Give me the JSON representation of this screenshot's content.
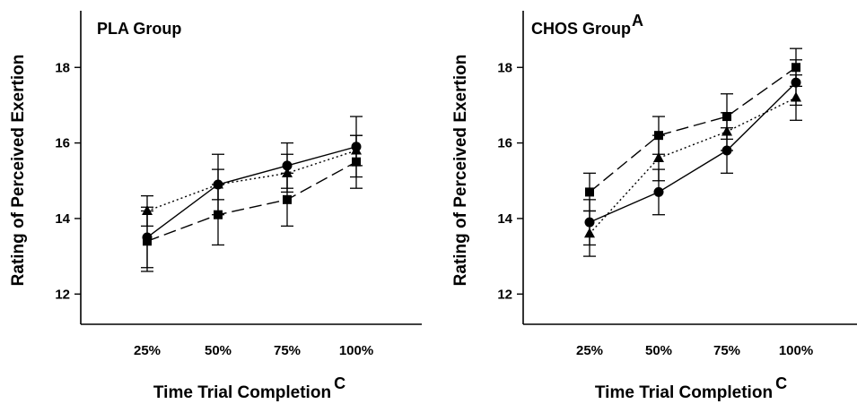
{
  "chart_data": [
    {
      "type": "line",
      "title": "PLA Group",
      "title_superscript": "",
      "xlabel": "Time Trial Completion",
      "xlabel_superscript": "C",
      "ylabel": "Rating of Perceived Exertion",
      "categories": [
        "25%",
        "50%",
        "75%",
        "100%"
      ],
      "ylim": [
        11.2,
        19.5
      ],
      "yticks": [
        12,
        14,
        16,
        18
      ],
      "grid": false,
      "series": [
        {
          "marker": "circle",
          "dash": "solid",
          "values": [
            13.5,
            14.9,
            15.4,
            15.9
          ],
          "errors": [
            0.8,
            0.8,
            0.6,
            0.8
          ]
        },
        {
          "marker": "square",
          "dash": "dashed",
          "values": [
            13.4,
            14.1,
            14.5,
            15.5
          ],
          "errors": [
            0.8,
            0.8,
            0.7,
            0.7
          ]
        },
        {
          "marker": "triangle",
          "dash": "dotted",
          "values": [
            14.2,
            14.9,
            15.2,
            15.8
          ],
          "errors": [
            0.4,
            0.4,
            0.5,
            0.4
          ]
        }
      ]
    },
    {
      "type": "line",
      "title": "CHOS Group",
      "title_superscript": "A",
      "xlabel": "Time Trial Completion",
      "xlabel_superscript": "C",
      "ylabel": "Rating of Perceived Exertion",
      "categories": [
        "25%",
        "50%",
        "75%",
        "100%"
      ],
      "ylim": [
        11.2,
        19.5
      ],
      "yticks": [
        12,
        14,
        16,
        18
      ],
      "grid": false,
      "series": [
        {
          "marker": "circle",
          "dash": "solid",
          "values": [
            13.9,
            14.7,
            15.8,
            17.6
          ],
          "errors": [
            0.6,
            0.6,
            0.6,
            0.6
          ]
        },
        {
          "marker": "square",
          "dash": "dashed",
          "values": [
            14.7,
            16.2,
            16.7,
            18.0
          ],
          "errors": [
            0.5,
            0.5,
            0.6,
            0.5
          ]
        },
        {
          "marker": "triangle",
          "dash": "dotted",
          "values": [
            13.6,
            15.6,
            16.3,
            17.2
          ],
          "errors": [
            0.6,
            0.6,
            0.5,
            0.6
          ]
        }
      ]
    }
  ]
}
